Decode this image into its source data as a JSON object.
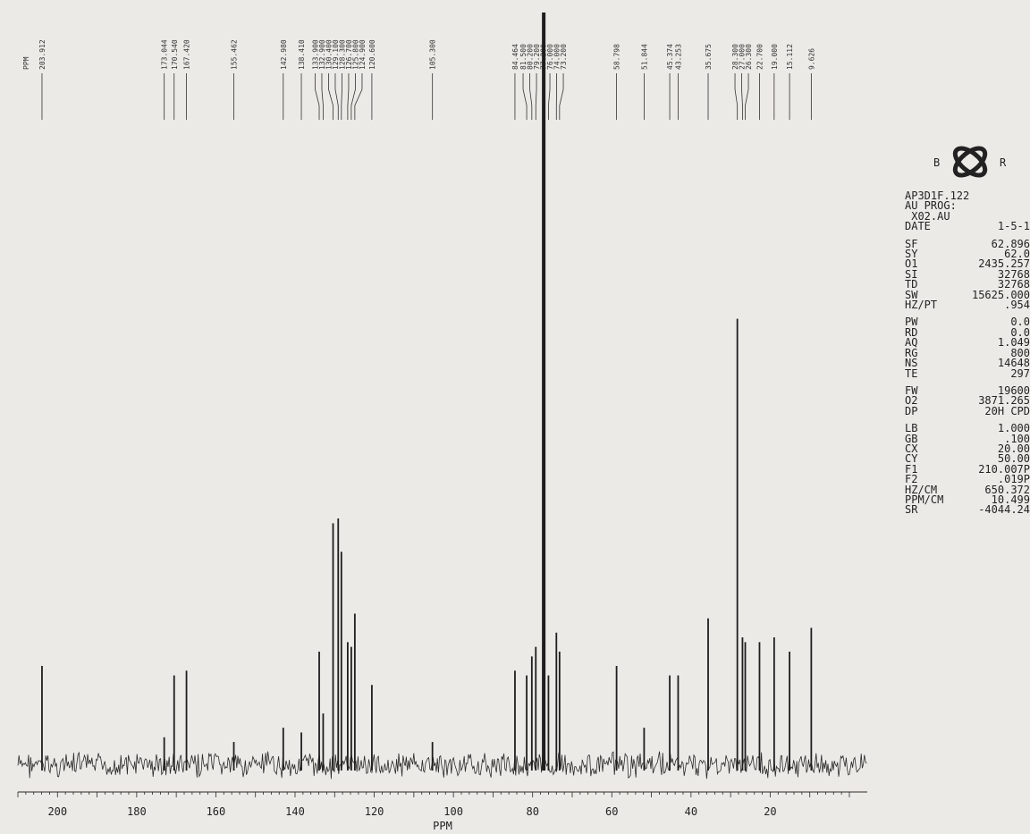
{
  "chart_data": {
    "type": "line",
    "title": "",
    "xlabel": "PPM",
    "ylabel": "",
    "x_reversed": true,
    "xlim": [
      210,
      0
    ],
    "ylim": [
      0,
      100
    ],
    "x_ticks": [
      200,
      180,
      160,
      140,
      120,
      100,
      80,
      60,
      40,
      20
    ],
    "peak_list_header": "PPM",
    "peaks": [
      {
        "ppm": 203.912,
        "height": 22,
        "label": "203.912"
      },
      {
        "ppm": 173.044,
        "height": 7,
        "label": "173.044"
      },
      {
        "ppm": 170.54,
        "height": 20,
        "label": "170.540"
      },
      {
        "ppm": 167.42,
        "height": 21,
        "label": "167.420"
      },
      {
        "ppm": 155.462,
        "height": 6,
        "label": "155.462"
      },
      {
        "ppm": 142.98,
        "height": 9,
        "label": "142.980"
      },
      {
        "ppm": 138.41,
        "height": 8,
        "label": "138.410"
      },
      {
        "ppm": 133.9,
        "height": 25,
        "label": "133.900"
      },
      {
        "ppm": 132.9,
        "height": 12,
        "label": "132.900"
      },
      {
        "ppm": 130.4,
        "height": 52,
        "label": "130.400"
      },
      {
        "ppm": 129.1,
        "height": 53,
        "label": "129.100"
      },
      {
        "ppm": 128.3,
        "height": 46,
        "label": "128.300"
      },
      {
        "ppm": 126.7,
        "height": 27,
        "label": "126.700"
      },
      {
        "ppm": 125.8,
        "height": 26,
        "label": "125.800"
      },
      {
        "ppm": 124.9,
        "height": 33,
        "label": "124.900"
      },
      {
        "ppm": 120.6,
        "height": 18,
        "label": "120.600"
      },
      {
        "ppm": 105.3,
        "height": 6,
        "label": "105.300"
      },
      {
        "ppm": 84.464,
        "height": 21,
        "label": "84.464"
      },
      {
        "ppm": 81.5,
        "height": 20,
        "label": "81.500"
      },
      {
        "ppm": 80.2,
        "height": 24,
        "label": "80.200"
      },
      {
        "ppm": 79.2,
        "height": 26,
        "label": "79.200"
      },
      {
        "ppm": 77.2,
        "height": 100,
        "label": "77.200"
      },
      {
        "ppm": 76.0,
        "height": 20,
        "label": "76.000"
      },
      {
        "ppm": 74.0,
        "height": 29,
        "label": "74.000"
      },
      {
        "ppm": 73.2,
        "height": 25,
        "label": "73.200"
      },
      {
        "ppm": 58.798,
        "height": 22,
        "label": "58.798"
      },
      {
        "ppm": 51.844,
        "height": 9,
        "label": "51.844"
      },
      {
        "ppm": 45.374,
        "height": 20,
        "label": "45.374"
      },
      {
        "ppm": 43.253,
        "height": 20,
        "label": "43.253"
      },
      {
        "ppm": 35.675,
        "height": 32,
        "label": "35.675"
      },
      {
        "ppm": 28.3,
        "height": 95,
        "label": "28.300"
      },
      {
        "ppm": 27.0,
        "height": 28,
        "label": "27.000"
      },
      {
        "ppm": 26.3,
        "height": 27,
        "label": "26.300"
      },
      {
        "ppm": 22.7,
        "height": 27,
        "label": "22.700"
      },
      {
        "ppm": 19.0,
        "height": 28,
        "label": "19.000"
      },
      {
        "ppm": 15.112,
        "height": 25,
        "label": "15.112"
      },
      {
        "ppm": 9.626,
        "height": 30,
        "label": "9.626"
      }
    ]
  },
  "logo": {
    "text": "BRUKER"
  },
  "parameters": {
    "header": [
      {
        "k": "AP3D1F.122",
        "v": ""
      },
      {
        "k": "AU PROG:",
        "v": ""
      },
      {
        "k": " X02.AU",
        "v": ""
      },
      {
        "k": "DATE",
        "v": "1-5-1"
      }
    ],
    "acq": [
      {
        "k": "SF",
        "v": "62.896"
      },
      {
        "k": "SY",
        "v": "62.0"
      },
      {
        "k": "O1",
        "v": "2435.257"
      },
      {
        "k": "SI",
        "v": "32768"
      },
      {
        "k": "TD",
        "v": "32768"
      },
      {
        "k": "SW",
        "v": "15625.000"
      },
      {
        "k": "HZ/PT",
        "v": ".954"
      }
    ],
    "pulse": [
      {
        "k": "PW",
        "v": "0.0"
      },
      {
        "k": "RD",
        "v": "0.0"
      },
      {
        "k": "AQ",
        "v": "1.049"
      },
      {
        "k": "RG",
        "v": "800"
      },
      {
        "k": "NS",
        "v": "14648"
      },
      {
        "k": "TE",
        "v": "297"
      }
    ],
    "decouple": [
      {
        "k": "FW",
        "v": "19600"
      },
      {
        "k": "O2",
        "v": "3871.265"
      },
      {
        "k": "DP",
        "v": "20H CPD"
      }
    ],
    "plot": [
      {
        "k": "LB",
        "v": "1.000"
      },
      {
        "k": "GB",
        "v": ".100"
      },
      {
        "k": "CX",
        "v": "20.00"
      },
      {
        "k": "CY",
        "v": "50.00"
      },
      {
        "k": "F1",
        "v": "210.007P"
      },
      {
        "k": "F2",
        "v": ".019P"
      },
      {
        "k": "HZ/CM",
        "v": "650.372"
      },
      {
        "k": "PPM/CM",
        "v": "10.499"
      },
      {
        "k": "SR",
        "v": "-4044.24"
      }
    ]
  }
}
